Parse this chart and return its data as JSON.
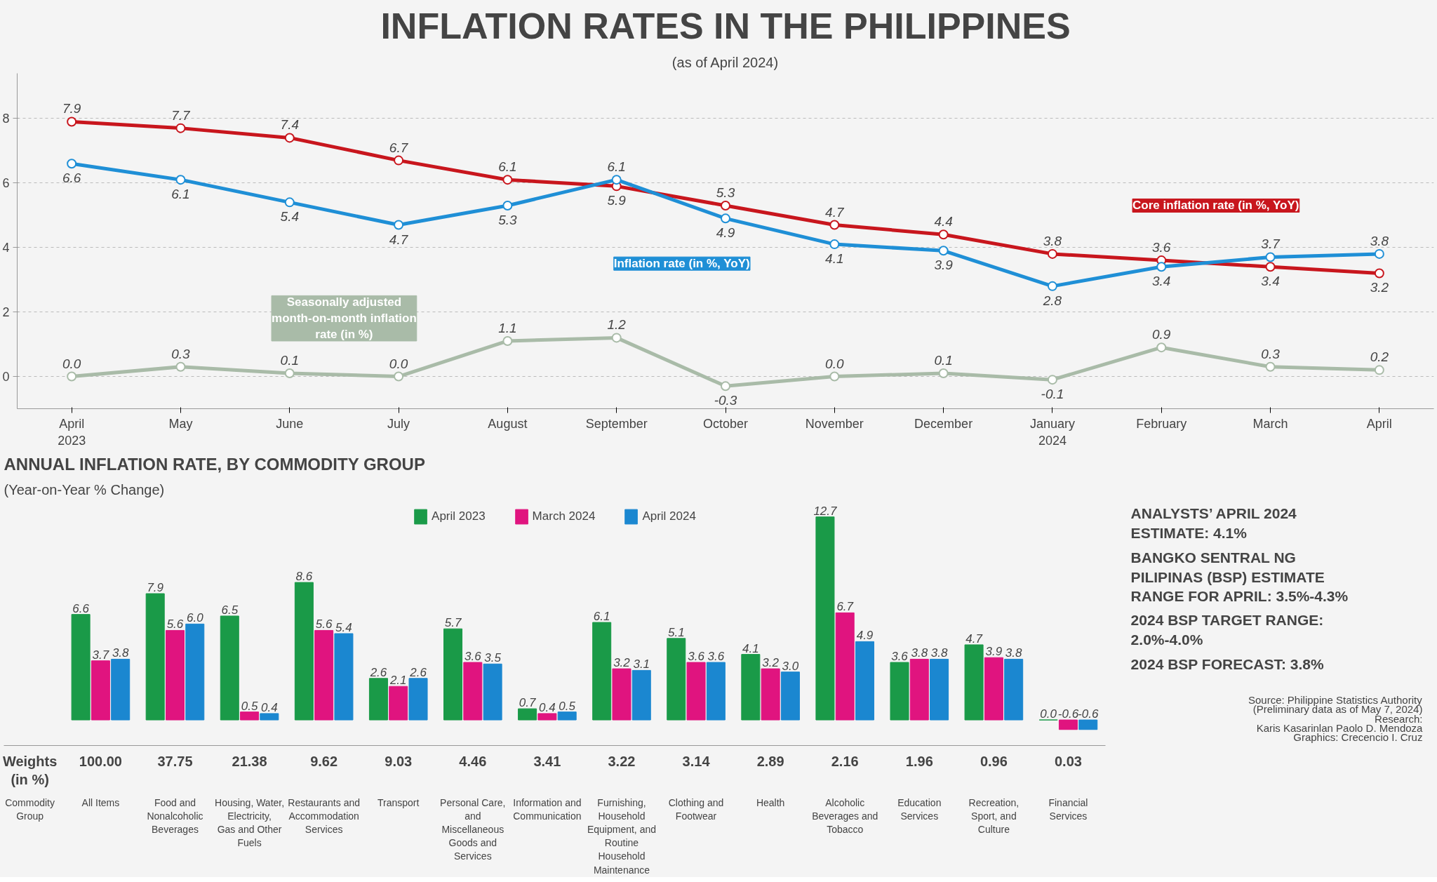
{
  "chart_data": [
    {
      "type": "line",
      "title": "INFLATION RATES IN THE PHILIPPINES",
      "subtitle": "(as of April 2024)",
      "categories": [
        "April 2023",
        "May",
        "June",
        "July",
        "August",
        "September",
        "October",
        "November",
        "December",
        "January 2024",
        "February",
        "March",
        "April"
      ],
      "series": [
        {
          "name": "Core inflation rate (in %, YoY)",
          "color": "#c8161d",
          "values": [
            7.9,
            7.7,
            7.4,
            6.7,
            6.1,
            5.9,
            5.3,
            4.7,
            4.4,
            3.8,
            3.6,
            3.4,
            3.2
          ]
        },
        {
          "name": "Inflation rate (in %, YoY)",
          "color": "#1f8fd6",
          "values": [
            6.6,
            6.1,
            5.4,
            4.7,
            5.3,
            6.1,
            4.9,
            4.1,
            3.9,
            2.8,
            3.4,
            3.7,
            3.8
          ]
        },
        {
          "name": "Seasonally adjusted month-on-month inflation rate (in %)",
          "color": "#a9bba8",
          "values": [
            0.0,
            0.3,
            0.1,
            0.0,
            1.1,
            1.2,
            -0.3,
            0.0,
            0.1,
            -0.1,
            0.9,
            0.3,
            0.2
          ],
          "value_labels": [
            "0.0",
            "0.3",
            "0.1",
            "0.0",
            "1.1",
            "1.2",
            "-0.3",
            "0.0",
            "0.1",
            "-0.1",
            "0.9",
            "0.3",
            "0.2"
          ]
        }
      ],
      "ylim": [
        -1.0,
        9.4
      ],
      "yticks": [
        0,
        2,
        4,
        6,
        8
      ],
      "grid": "y",
      "marker": "circle",
      "line_style": "solid",
      "data_labels": true,
      "legend": false
    },
    {
      "type": "bar",
      "title": "ANNUAL INFLATION RATE, BY COMMODITY GROUP",
      "subtitle": "(Year-on-Year % Change)",
      "categories": [
        "All Items",
        "Food and Nonalcoholic Beverages",
        "Housing, Water, Electricity, Gas and Other Fuels",
        "Restaurants and Accommodation Services",
        "Transport",
        "Personal Care, and Miscellaneous Goods and Services",
        "Information and Communication",
        "Furnishing, Household Equipment, and Routine Household Maintenance",
        "Clothing and Footwear",
        "Health",
        "Alcoholic Beverages and Tobacco",
        "Education Services",
        "Recreation, Sport, and Culture",
        "Financial Services"
      ],
      "series": [
        {
          "name": "April 2023",
          "color": "#1a9a48",
          "values": [
            6.6,
            7.9,
            6.5,
            8.6,
            2.6,
            5.7,
            0.7,
            6.1,
            5.1,
            4.1,
            12.7,
            3.6,
            4.7,
            0.0
          ],
          "value_labels": [
            "6.6",
            "7.9",
            "6.5",
            "8.6",
            "2.6",
            "5.7",
            "0.7",
            "6.1",
            "5.1",
            "4.1",
            "12.7",
            "3.6",
            "4.7",
            "0.0"
          ]
        },
        {
          "name": "March 2024",
          "color": "#e0147f",
          "values": [
            3.7,
            5.6,
            0.5,
            5.6,
            2.1,
            3.6,
            0.4,
            3.2,
            3.6,
            3.2,
            6.7,
            3.8,
            3.9,
            -0.6
          ]
        },
        {
          "name": "April 2024",
          "color": "#1b87d0",
          "values": [
            3.8,
            6.0,
            0.4,
            5.4,
            2.6,
            3.5,
            0.5,
            3.1,
            3.6,
            3.0,
            4.9,
            3.8,
            3.8,
            -0.6
          ],
          "value_labels": [
            "3.8",
            "6.0",
            "0.4",
            "5.4",
            "2.6",
            "3.5",
            "0.5",
            "3.1",
            "3.6",
            "3.0",
            "4.9",
            "3.8",
            "3.8",
            "-0.6"
          ]
        }
      ],
      "tick_labels": "x",
      "data_labels": true,
      "legend": "top",
      "annotations": [
        "Weights (in %)",
        "Commodity Group",
        "100.00",
        "37.75",
        "21.38",
        "9.62",
        "9.03",
        "4.46",
        "3.41",
        "3.22",
        "3.14",
        "2.89",
        "2.16",
        "1.96",
        "0.96",
        "0.03"
      ]
    },
    {
      "type": "other",
      "annotations": [
        "ANALYSTS’ APRIL 2024 ESTIMATE: 4.1%",
        "BANGKO SENTRAL NG PILIPINAS (BSP) ESTIMATE RANGE FOR APRIL: 3.5%-4.3%",
        "2024 BSP TARGET RANGE: 2.0%-4.0%",
        "2024 BSP FORECAST: 3.8%",
        "Source: Philippine Statistics Authority",
        "(Preliminary data as of May 7, 2024)",
        "Research:",
        "Karis Kasarinlan Paolo D. Mendoza",
        "Graphics: Crecencio I. Cruz"
      ]
    }
  ]
}
